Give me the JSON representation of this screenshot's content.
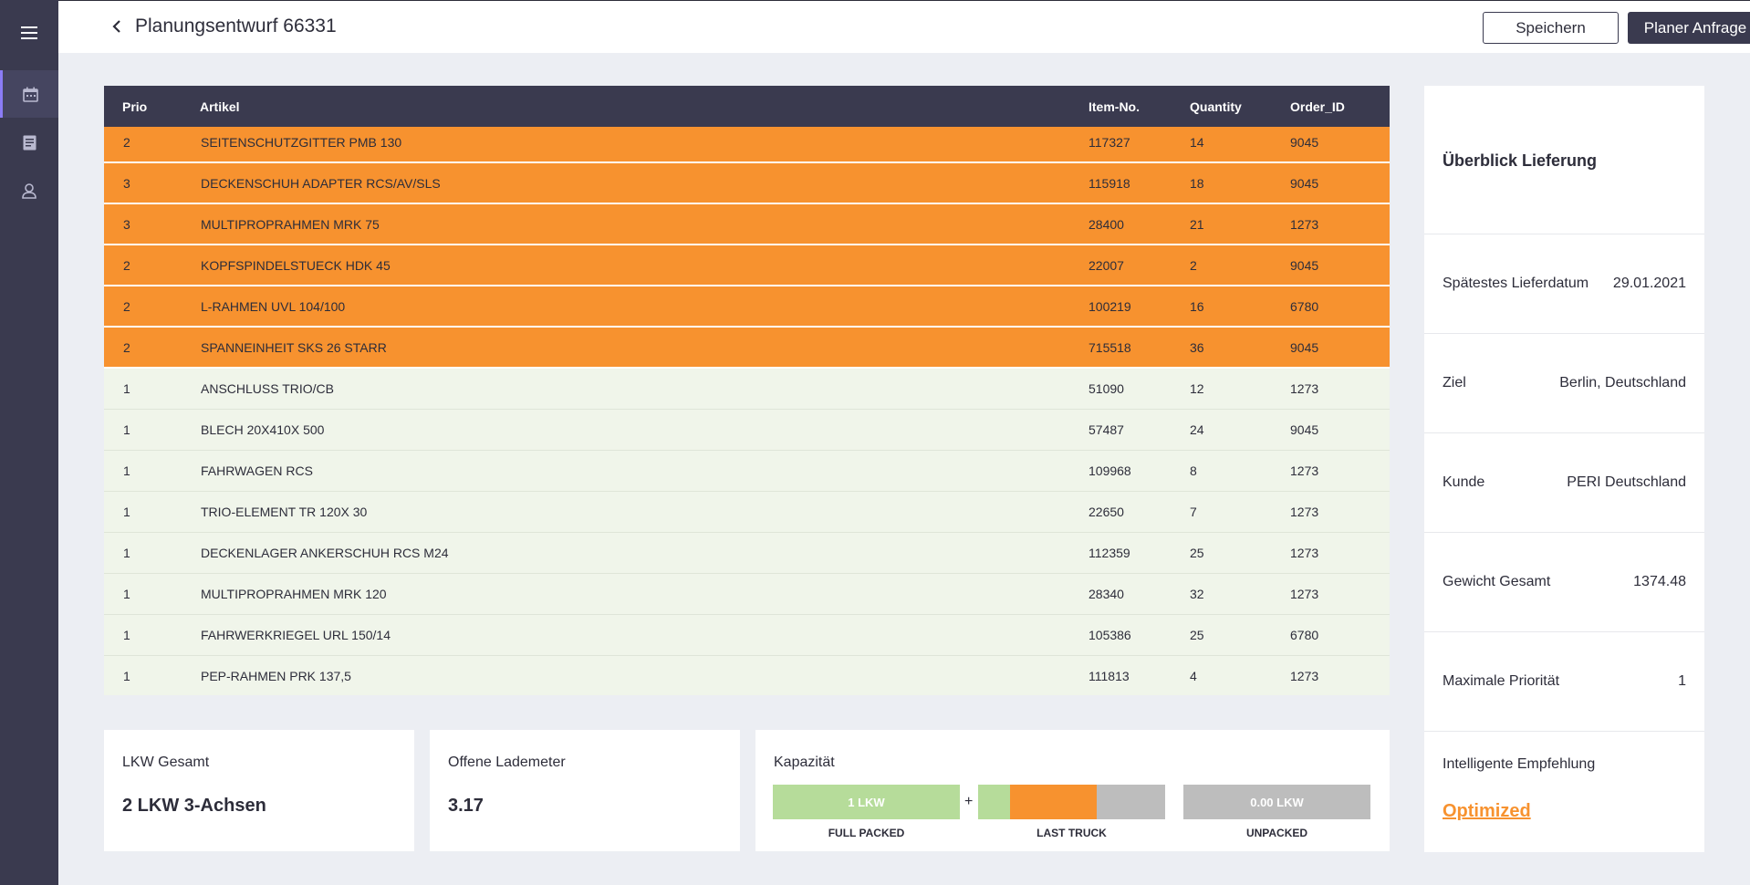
{
  "header": {
    "title": "Planungsentwurf 66331",
    "save_label": "Speichern",
    "plan_label": "Planer Anfrage"
  },
  "sidebar": {
    "items": [
      {
        "icon": "menu-icon"
      },
      {
        "icon": "calendar-icon",
        "active": true
      },
      {
        "icon": "document-icon"
      },
      {
        "icon": "user-icon"
      }
    ]
  },
  "table": {
    "columns": {
      "prio": "Prio",
      "artikel": "Artikel",
      "item_no": "Item-No.",
      "quantity": "Quantity",
      "order_id": "Order_ID"
    },
    "rows": [
      {
        "prio": "2",
        "artikel": "SEITENSCHUTZGITTER PMB 130",
        "item_no": "117327",
        "quantity": "14",
        "order_id": "9045"
      },
      {
        "prio": "3",
        "artikel": "DECKENSCHUH ADAPTER RCS/AV/SLS",
        "item_no": "115918",
        "quantity": "18",
        "order_id": "9045"
      },
      {
        "prio": "3",
        "artikel": "MULTIPROPRAHMEN MRK 75",
        "item_no": "28400",
        "quantity": "21",
        "order_id": "1273"
      },
      {
        "prio": "2",
        "artikel": "KOPFSPINDELSTUECK HDK 45",
        "item_no": "22007",
        "quantity": "2",
        "order_id": "9045"
      },
      {
        "prio": "2",
        "artikel": "L-RAHMEN UVL 104/100",
        "item_no": "100219",
        "quantity": "16",
        "order_id": "6780"
      },
      {
        "prio": "2",
        "artikel": "SPANNEINHEIT SKS 26 STARR",
        "item_no": "715518",
        "quantity": "36",
        "order_id": "9045"
      },
      {
        "prio": "1",
        "artikel": "ANSCHLUSS TRIO/CB",
        "item_no": "51090",
        "quantity": "12",
        "order_id": "1273"
      },
      {
        "prio": "1",
        "artikel": "BLECH 20X410X 500",
        "item_no": "57487",
        "quantity": "24",
        "order_id": "9045"
      },
      {
        "prio": "1",
        "artikel": "FAHRWAGEN RCS",
        "item_no": "109968",
        "quantity": "8",
        "order_id": "1273"
      },
      {
        "prio": "1",
        "artikel": "TRIO-ELEMENT TR 120X 30",
        "item_no": "22650",
        "quantity": "7",
        "order_id": "1273"
      },
      {
        "prio": "1",
        "artikel": "DECKENLAGER ANKERSCHUH RCS M24",
        "item_no": "112359",
        "quantity": "25",
        "order_id": "1273"
      },
      {
        "prio": "1",
        "artikel": "MULTIPROPRAHMEN MRK 120",
        "item_no": "28340",
        "quantity": "32",
        "order_id": "1273"
      },
      {
        "prio": "1",
        "artikel": "FAHRWERKRIEGEL URL 150/14",
        "item_no": "105386",
        "quantity": "25",
        "order_id": "6780"
      },
      {
        "prio": "1",
        "artikel": "PEP-RAHMEN PRK 137,5",
        "item_no": "111813",
        "quantity": "4",
        "order_id": "1273"
      }
    ]
  },
  "overview": {
    "title": "Überblick Lieferung",
    "fields": [
      {
        "label": "Spätestes Lieferdatum",
        "value": "29.01.2021"
      },
      {
        "label": "Ziel",
        "value": "Berlin, Deutschland"
      },
      {
        "label": "Kunde",
        "value": "PERI Deutschland"
      },
      {
        "label": "Gewicht Gesamt",
        "value": "1374.48"
      },
      {
        "label": "Maximale Priorität",
        "value": "1"
      }
    ],
    "recommendation_label": "Intelligente Empfehlung",
    "recommendation_value": "Optimized"
  },
  "cards": {
    "lkw": {
      "label": "LKW Gesamt",
      "value": "2 LKW 3-Achsen"
    },
    "lademeter": {
      "label": "Offene Lademeter",
      "value": "3.17"
    },
    "kapazitaet": {
      "label": "Kapazität",
      "full_text": "1 LKW",
      "full_caption": "FULL PACKED",
      "plus": "+",
      "last_caption": "LAST TRUCK",
      "last_fill": 0.56,
      "unpacked_text": "0.00 LKW",
      "unpacked_caption": "UNPACKED"
    }
  },
  "colors": {
    "sidebar": "#3a3a4f",
    "high_priority_row": "#f7922f",
    "low_priority_row": "#f0f5ea",
    "full_packed": "#b6dc9a",
    "unpacked": "#bdbdbd",
    "accent": "#f7922f"
  }
}
